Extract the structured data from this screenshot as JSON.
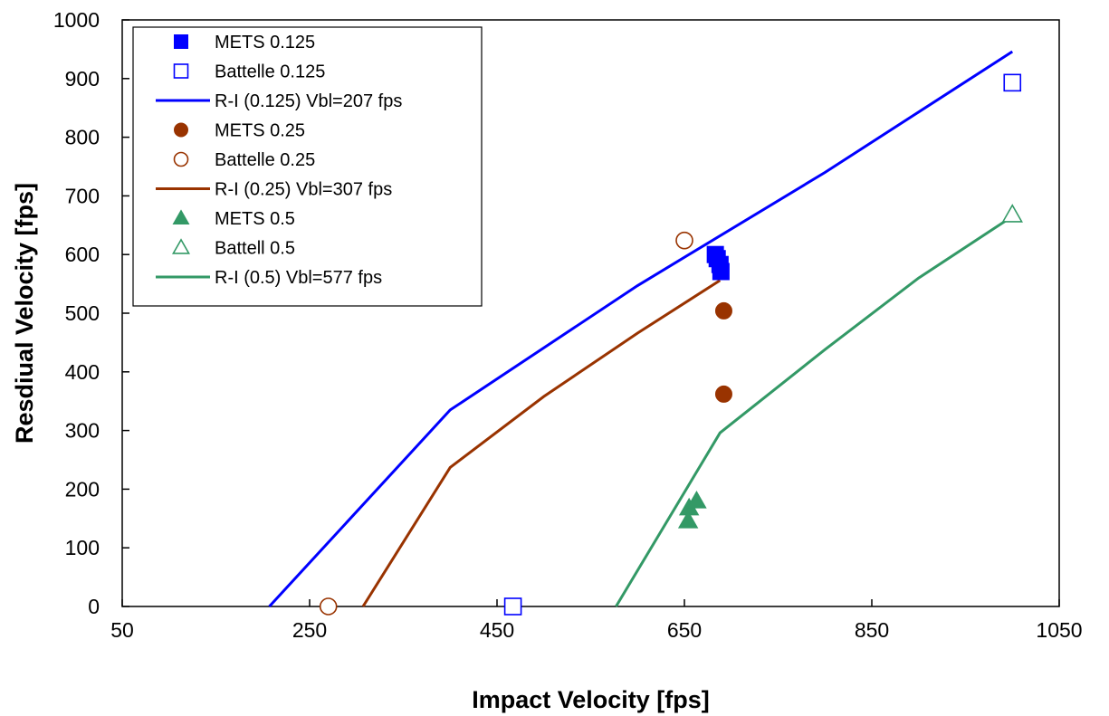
{
  "chart_data": {
    "type": "scatter",
    "xlabel": "Impact Velocity [fps]",
    "ylabel": "Resdiual Velocity [fps]",
    "xlim": [
      50,
      1050
    ],
    "ylim": [
      0,
      1000
    ],
    "xticks": [
      50,
      250,
      450,
      650,
      850,
      1050
    ],
    "yticks": [
      0,
      100,
      200,
      300,
      400,
      500,
      600,
      700,
      800,
      900,
      1000
    ],
    "grid": false,
    "legend_position": "top-left",
    "series": [
      {
        "name": "METS 0.125",
        "kind": "marker",
        "marker": "square-filled",
        "color": "#0000ff",
        "points": [
          [
            683,
            600
          ],
          [
            688,
            583
          ],
          [
            689,
            571
          ],
          [
            685,
            593
          ]
        ]
      },
      {
        "name": "Battelle 0.125",
        "kind": "marker",
        "marker": "square-open",
        "color": "#0000ff",
        "points": [
          [
            467,
            0
          ],
          [
            1000,
            893
          ]
        ]
      },
      {
        "name": "R-I (0.125) Vbl=207 fps",
        "kind": "line",
        "color": "#0000ff",
        "points": [
          [
            207,
            0
          ],
          [
            400,
            335
          ],
          [
            600,
            547
          ],
          [
            800,
            740
          ],
          [
            1000,
            946
          ]
        ]
      },
      {
        "name": "METS 0.25",
        "kind": "marker",
        "marker": "circle-filled",
        "color": "#993300",
        "points": [
          [
            692,
            504
          ],
          [
            692,
            362
          ]
        ]
      },
      {
        "name": "Battelle 0.25",
        "kind": "marker",
        "marker": "circle-open",
        "color": "#993300",
        "points": [
          [
            270,
            0
          ],
          [
            650,
            624
          ]
        ]
      },
      {
        "name": "R-I (0.25) Vbl=307 fps",
        "kind": "line",
        "color": "#993300",
        "points": [
          [
            307,
            0
          ],
          [
            400,
            237
          ],
          [
            500,
            358
          ],
          [
            600,
            466
          ],
          [
            688,
            556
          ]
        ]
      },
      {
        "name": "METS 0.5",
        "kind": "marker",
        "marker": "triangle-filled",
        "color": "#339966",
        "points": [
          [
            655,
            168
          ],
          [
            654,
            146
          ],
          [
            663,
            180
          ]
        ]
      },
      {
        "name": "Battell 0.5",
        "kind": "marker",
        "marker": "triangle-open",
        "color": "#339966",
        "points": [
          [
            1000,
            668
          ]
        ]
      },
      {
        "name": "R-I (0.5) Vbl=577 fps",
        "kind": "line",
        "color": "#339966",
        "points": [
          [
            577,
            0
          ],
          [
            688,
            296
          ],
          [
            800,
            438
          ],
          [
            900,
            560
          ],
          [
            1000,
            665
          ]
        ]
      }
    ]
  }
}
